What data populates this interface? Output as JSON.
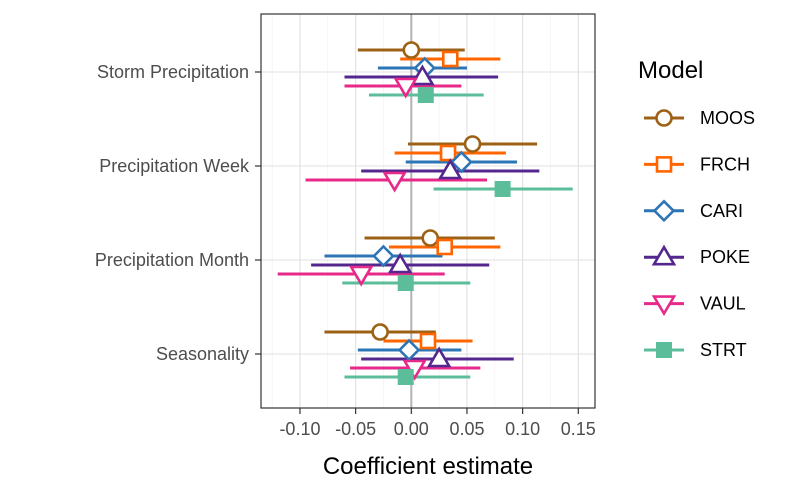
{
  "chart_data": {
    "type": "scatter",
    "subtype": "coefficient-errorbar",
    "xlabel": "Coefficient estimate",
    "xlim": [
      -0.135,
      0.165
    ],
    "xticks": [
      -0.1,
      -0.05,
      0.0,
      0.05,
      0.1,
      0.15
    ],
    "xtick_labels": [
      "-0.10",
      "-0.05",
      "0.00",
      "0.05",
      "0.10",
      "0.15"
    ],
    "reference_line_x": 0,
    "grid": true,
    "legend_position": "right",
    "legend_title": "Model",
    "categories": [
      "Storm Precipitation",
      "Precipitation Week",
      "Precipitation Month",
      "Seasonality"
    ],
    "series": [
      {
        "name": "MOOS",
        "color": "#9C6114",
        "marker": "circle-open",
        "estimates": [
          0.0,
          0.055,
          0.017,
          -0.028
        ],
        "lower": [
          -0.048,
          -0.003,
          -0.042,
          -0.078
        ],
        "upper": [
          0.048,
          0.113,
          0.075,
          0.022
        ]
      },
      {
        "name": "FRCH",
        "color": "#FF6600",
        "marker": "square-open",
        "estimates": [
          0.035,
          0.033,
          0.03,
          0.015
        ],
        "lower": [
          -0.01,
          -0.015,
          -0.02,
          -0.025
        ],
        "upper": [
          0.08,
          0.085,
          0.08,
          0.055
        ]
      },
      {
        "name": "CARI",
        "color": "#2E75B6",
        "marker": "diamond-open",
        "estimates": [
          0.012,
          0.045,
          -0.025,
          -0.002
        ],
        "lower": [
          -0.03,
          -0.005,
          -0.078,
          -0.048
        ],
        "upper": [
          0.05,
          0.095,
          0.028,
          0.045
        ]
      },
      {
        "name": "POKE",
        "color": "#54278F",
        "marker": "triangle-up-open",
        "estimates": [
          0.01,
          0.035,
          -0.01,
          0.025
        ],
        "lower": [
          -0.06,
          -0.045,
          -0.09,
          -0.045
        ],
        "upper": [
          0.078,
          0.115,
          0.07,
          0.092
        ]
      },
      {
        "name": "VAUL",
        "color": "#E7298A",
        "marker": "triangle-down-open",
        "estimates": [
          -0.005,
          -0.015,
          -0.045,
          0.003
        ],
        "lower": [
          -0.06,
          -0.095,
          -0.12,
          -0.055
        ],
        "upper": [
          0.045,
          0.068,
          0.03,
          0.062
        ]
      },
      {
        "name": "STRT",
        "color": "#5CBD9A",
        "marker": "square-filled",
        "estimates": [
          0.013,
          0.082,
          -0.005,
          -0.005
        ],
        "lower": [
          -0.038,
          0.02,
          -0.062,
          -0.06
        ],
        "upper": [
          0.065,
          0.145,
          0.053,
          0.053
        ]
      }
    ]
  }
}
